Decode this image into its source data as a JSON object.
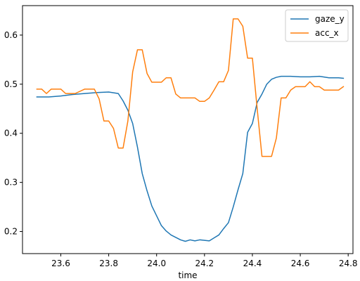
{
  "chart_data": {
    "type": "line",
    "title": "",
    "xlabel": "time",
    "ylabel": "",
    "xlim": [
      23.44,
      24.82
    ],
    "ylim": [
      0.155,
      0.66
    ],
    "x_ticks": [
      23.6,
      23.8,
      24.0,
      24.2,
      24.4,
      24.6,
      24.8
    ],
    "x_tick_labels": [
      "23.6",
      "23.8",
      "24.0",
      "24.2",
      "24.4",
      "24.6",
      "24.8"
    ],
    "y_ticks": [
      0.2,
      0.3,
      0.4,
      0.5,
      0.6
    ],
    "y_tick_labels": [
      "0.2",
      "0.3",
      "0.4",
      "0.5",
      "0.6"
    ],
    "grid": false,
    "legend_position": "top-right",
    "series": [
      {
        "name": "gaze_y",
        "color": "#1f77b4",
        "points": [
          [
            23.5,
            0.474
          ],
          [
            23.55,
            0.474
          ],
          [
            23.6,
            0.476
          ],
          [
            23.65,
            0.479
          ],
          [
            23.7,
            0.481
          ],
          [
            23.75,
            0.483
          ],
          [
            23.8,
            0.484
          ],
          [
            23.84,
            0.481
          ],
          [
            23.86,
            0.466
          ],
          [
            23.88,
            0.447
          ],
          [
            23.9,
            0.42
          ],
          [
            23.92,
            0.372
          ],
          [
            23.94,
            0.318
          ],
          [
            23.96,
            0.283
          ],
          [
            23.98,
            0.252
          ],
          [
            24.0,
            0.232
          ],
          [
            24.02,
            0.212
          ],
          [
            24.04,
            0.201
          ],
          [
            24.06,
            0.193
          ],
          [
            24.08,
            0.188
          ],
          [
            24.1,
            0.183
          ],
          [
            24.12,
            0.18
          ],
          [
            24.14,
            0.183
          ],
          [
            24.16,
            0.181
          ],
          [
            24.18,
            0.183
          ],
          [
            24.2,
            0.182
          ],
          [
            24.22,
            0.181
          ],
          [
            24.24,
            0.187
          ],
          [
            24.26,
            0.193
          ],
          [
            24.28,
            0.206
          ],
          [
            24.3,
            0.218
          ],
          [
            24.32,
            0.25
          ],
          [
            24.34,
            0.285
          ],
          [
            24.36,
            0.318
          ],
          [
            24.38,
            0.402
          ],
          [
            24.4,
            0.42
          ],
          [
            24.42,
            0.463
          ],
          [
            24.44,
            0.48
          ],
          [
            24.46,
            0.5
          ],
          [
            24.48,
            0.51
          ],
          [
            24.5,
            0.514
          ],
          [
            24.52,
            0.516
          ],
          [
            24.56,
            0.516
          ],
          [
            24.6,
            0.515
          ],
          [
            24.64,
            0.515
          ],
          [
            24.68,
            0.516
          ],
          [
            24.72,
            0.513
          ],
          [
            24.76,
            0.513
          ],
          [
            24.78,
            0.512
          ]
        ]
      },
      {
        "name": "acc_x",
        "color": "#ff7f0e",
        "points": [
          [
            23.5,
            0.49
          ],
          [
            23.52,
            0.49
          ],
          [
            23.54,
            0.481
          ],
          [
            23.56,
            0.49
          ],
          [
            23.6,
            0.49
          ],
          [
            23.62,
            0.481
          ],
          [
            23.66,
            0.481
          ],
          [
            23.7,
            0.49
          ],
          [
            23.74,
            0.49
          ],
          [
            23.76,
            0.47
          ],
          [
            23.78,
            0.425
          ],
          [
            23.8,
            0.425
          ],
          [
            23.82,
            0.41
          ],
          [
            23.84,
            0.37
          ],
          [
            23.86,
            0.37
          ],
          [
            23.88,
            0.425
          ],
          [
            23.9,
            0.525
          ],
          [
            23.92,
            0.57
          ],
          [
            23.94,
            0.57
          ],
          [
            23.96,
            0.522
          ],
          [
            23.98,
            0.504
          ],
          [
            24.02,
            0.504
          ],
          [
            24.04,
            0.513
          ],
          [
            24.06,
            0.513
          ],
          [
            24.08,
            0.48
          ],
          [
            24.1,
            0.472
          ],
          [
            24.16,
            0.472
          ],
          [
            24.18,
            0.465
          ],
          [
            24.2,
            0.465
          ],
          [
            24.22,
            0.472
          ],
          [
            24.24,
            0.488
          ],
          [
            24.26,
            0.505
          ],
          [
            24.28,
            0.505
          ],
          [
            24.3,
            0.528
          ],
          [
            24.32,
            0.633
          ],
          [
            24.34,
            0.633
          ],
          [
            24.36,
            0.618
          ],
          [
            24.38,
            0.553
          ],
          [
            24.4,
            0.553
          ],
          [
            24.42,
            0.45
          ],
          [
            24.44,
            0.353
          ],
          [
            24.48,
            0.353
          ],
          [
            24.5,
            0.39
          ],
          [
            24.52,
            0.472
          ],
          [
            24.54,
            0.472
          ],
          [
            24.56,
            0.488
          ],
          [
            24.58,
            0.495
          ],
          [
            24.62,
            0.495
          ],
          [
            24.64,
            0.505
          ],
          [
            24.66,
            0.495
          ],
          [
            24.68,
            0.495
          ],
          [
            24.7,
            0.488
          ],
          [
            24.76,
            0.488
          ],
          [
            24.78,
            0.495
          ]
        ]
      }
    ]
  }
}
